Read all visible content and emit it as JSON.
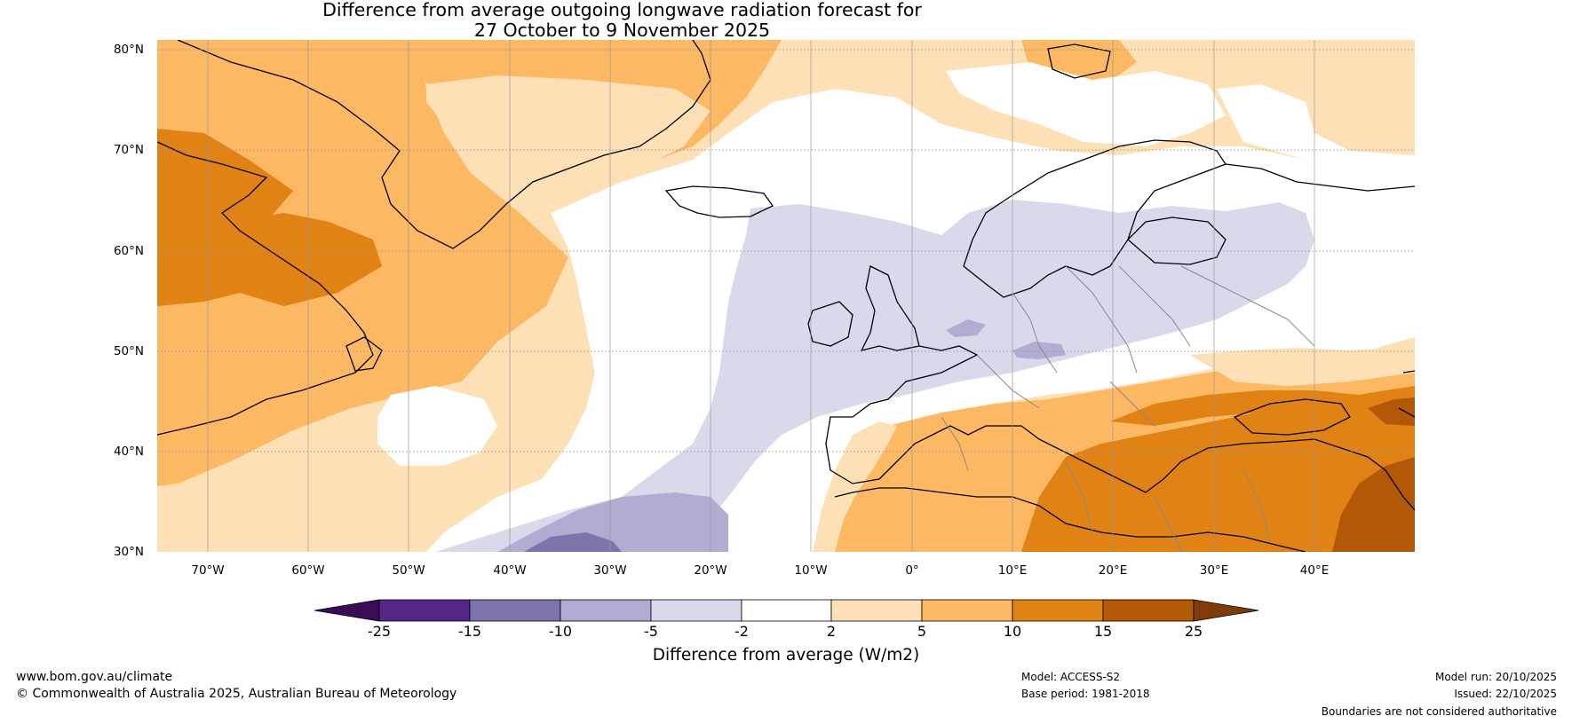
{
  "title": {
    "line1": "Difference from average outgoing longwave radiation forecast for",
    "line2": "27 October to 9 November 2025"
  },
  "map": {
    "lat_labels": [
      "80°N",
      "70°N",
      "60°N",
      "50°N",
      "40°N",
      "30°N"
    ],
    "lon_labels": [
      "70°W",
      "60°W",
      "50°W",
      "40°W",
      "30°W",
      "20°W",
      "10°W",
      "0°",
      "10°E",
      "20°E",
      "30°E",
      "40°E"
    ],
    "lat_range": [
      30,
      80
    ],
    "lon_range": [
      -75,
      50
    ]
  },
  "colorbar": {
    "ticks": [
      "-25",
      "-15",
      "-10",
      "-5",
      "-2",
      "2",
      "5",
      "10",
      "15",
      "25"
    ],
    "bins": [
      {
        "range": "below -25",
        "color": "#3b0b56"
      },
      {
        "range": "-25 to -15",
        "color": "#542788"
      },
      {
        "range": "-15 to -10",
        "color": "#8073ac"
      },
      {
        "range": "-10 to -5",
        "color": "#b2abd2"
      },
      {
        "range": "-5 to -2",
        "color": "#d8daeb"
      },
      {
        "range": "-2 to 2",
        "color": "#ffffff"
      },
      {
        "range": "2 to 5",
        "color": "#fee0b6"
      },
      {
        "range": "5 to 10",
        "color": "#fdb863"
      },
      {
        "range": "10 to 15",
        "color": "#e08214"
      },
      {
        "range": "15 to 25",
        "color": "#b35806"
      },
      {
        "range": "above 25",
        "color": "#7f3b08"
      }
    ],
    "label": "Difference from average (W/m2)"
  },
  "footer": {
    "website": "www.bom.gov.au/climate",
    "copyright": "© Commonwealth of Australia 2025, Australian Bureau of Meteorology",
    "model": "Model: ACCESS-S2",
    "base_period": "Base period: 1981-2018",
    "model_run": "Model run: 20/10/2025",
    "issued": "Issued: 22/10/2025",
    "disclaimer": "Boundaries are not considered authoritative"
  }
}
